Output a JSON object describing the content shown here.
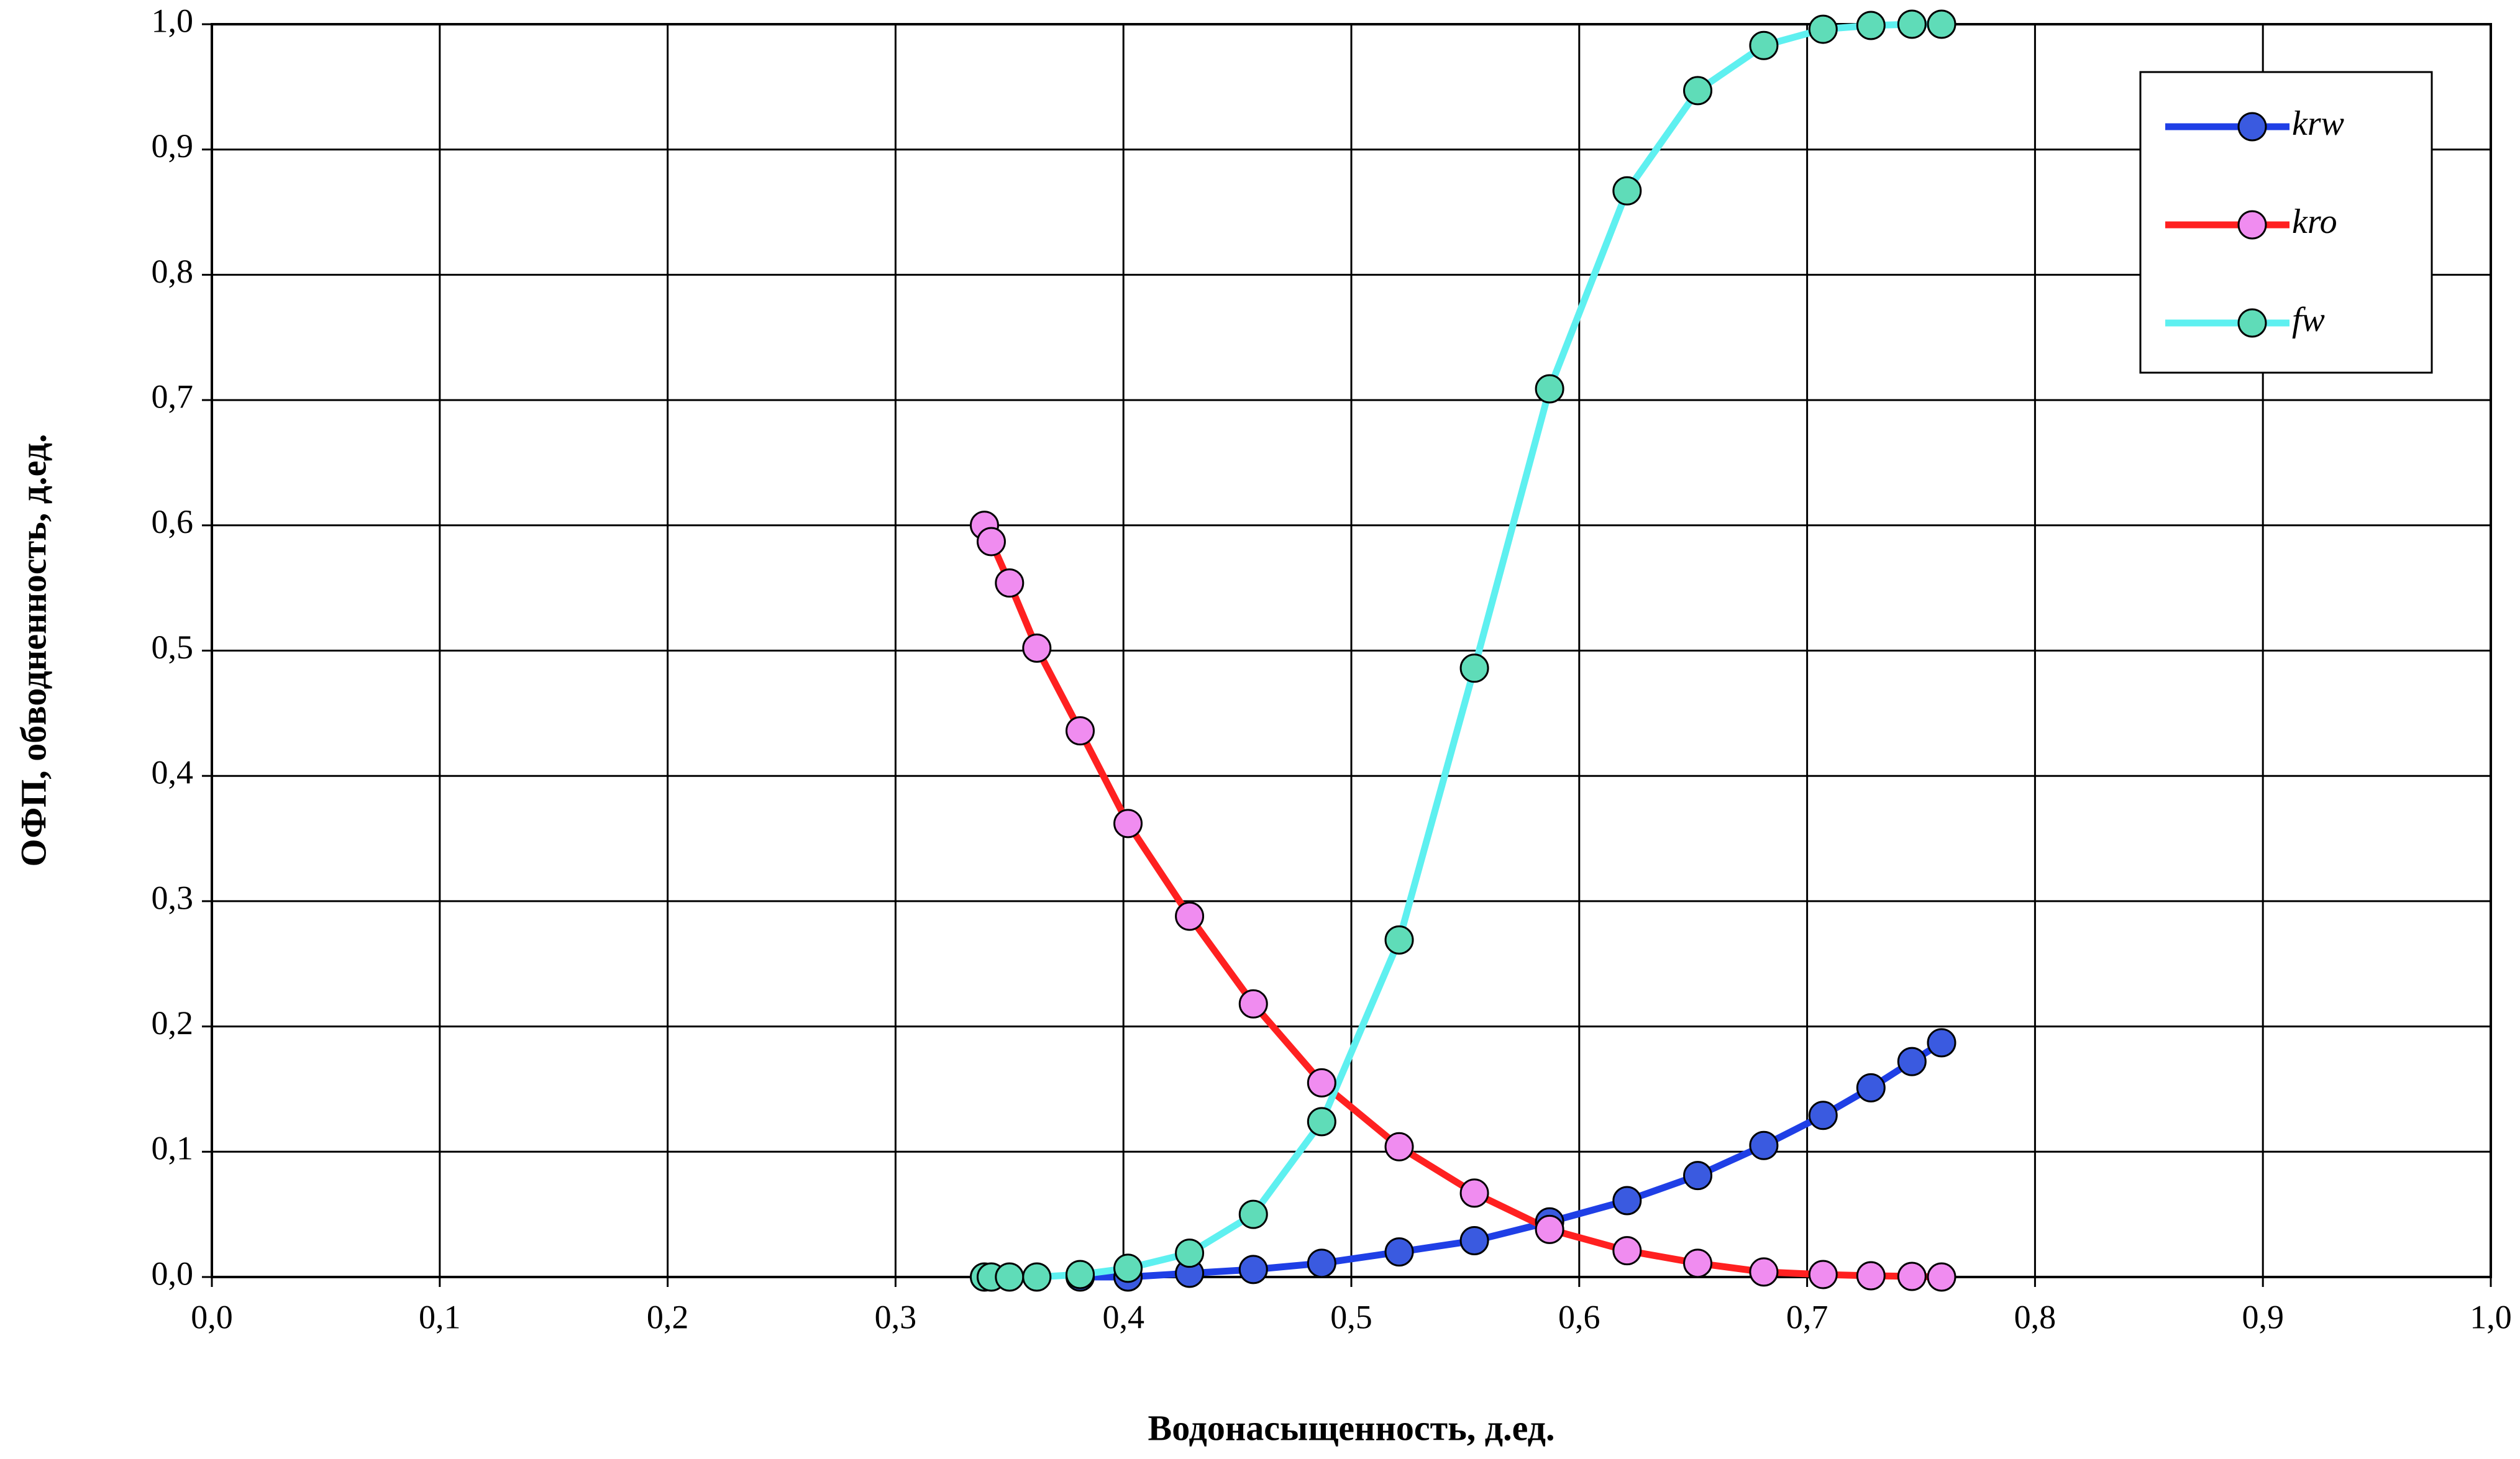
{
  "chart_data": {
    "type": "line",
    "x_label": "Водонасыщенность, д.ед.",
    "y_label": "ОФП, обводненность, д.ед.",
    "x": [
      0.339,
      0.342,
      0.35,
      0.362,
      0.381,
      0.402,
      0.429,
      0.457,
      0.487,
      0.521,
      0.554,
      0.587,
      0.621,
      0.652,
      0.681,
      0.707,
      0.728,
      0.746,
      0.759
    ],
    "series": [
      {
        "name": "krw",
        "color": "#1f3fe6",
        "marker_color": "#3a5ae0",
        "values": [
          null,
          null,
          null,
          null,
          0,
          0,
          0.003,
          0.006,
          0.011,
          0.02,
          0.029,
          0.044,
          0.061,
          0.081,
          0.105,
          0.129,
          0.151,
          0.172,
          0.187
        ]
      },
      {
        "name": "kro",
        "color": "#ff2020",
        "marker_color": "#f08cf0",
        "values": [
          0.6,
          0.587,
          0.554,
          0.502,
          0.436,
          0.362,
          0.288,
          0.218,
          0.155,
          0.104,
          0.067,
          0.038,
          0.021,
          0.011,
          0.004,
          0.002,
          0.001,
          0.0005,
          0
        ]
      },
      {
        "name": "fw",
        "color": "#5ef0f0",
        "marker_color": "#5fdcb8",
        "values": [
          0,
          0,
          0,
          0,
          0.002,
          0.007,
          0.019,
          0.05,
          0.124,
          0.269,
          0.486,
          0.709,
          0.867,
          0.947,
          0.983,
          0.996,
          0.999,
          1.0,
          1.0
        ]
      }
    ],
    "xlim": [
      0,
      1
    ],
    "ylim": [
      0,
      1
    ],
    "xticks": [
      {
        "value": 0,
        "label": "0,0"
      },
      {
        "value": 0.1,
        "label": "0,1"
      },
      {
        "value": 0.2,
        "label": "0,2"
      },
      {
        "value": 0.3,
        "label": "0,3"
      },
      {
        "value": 0.4,
        "label": "0,4"
      },
      {
        "value": 0.5,
        "label": "0,5"
      },
      {
        "value": 0.6,
        "label": "0,6"
      },
      {
        "value": 0.7,
        "label": "0,7"
      },
      {
        "value": 0.8,
        "label": "0,8"
      },
      {
        "value": 0.9,
        "label": "0,9"
      },
      {
        "value": 1,
        "label": "1,0"
      }
    ],
    "yticks": [
      {
        "value": 0,
        "label": "0,0"
      },
      {
        "value": 0.1,
        "label": "0,1"
      },
      {
        "value": 0.2,
        "label": "0,2"
      },
      {
        "value": 0.3,
        "label": "0,3"
      },
      {
        "value": 0.4,
        "label": "0,4"
      },
      {
        "value": 0.5,
        "label": "0,5"
      },
      {
        "value": 0.6,
        "label": "0,6"
      },
      {
        "value": 0.7,
        "label": "0,7"
      },
      {
        "value": 0.8,
        "label": "0,8"
      },
      {
        "value": 0.9,
        "label": "0,9"
      },
      {
        "value": 1,
        "label": "1,0"
      }
    ],
    "grid": true,
    "legend": "upper right"
  }
}
